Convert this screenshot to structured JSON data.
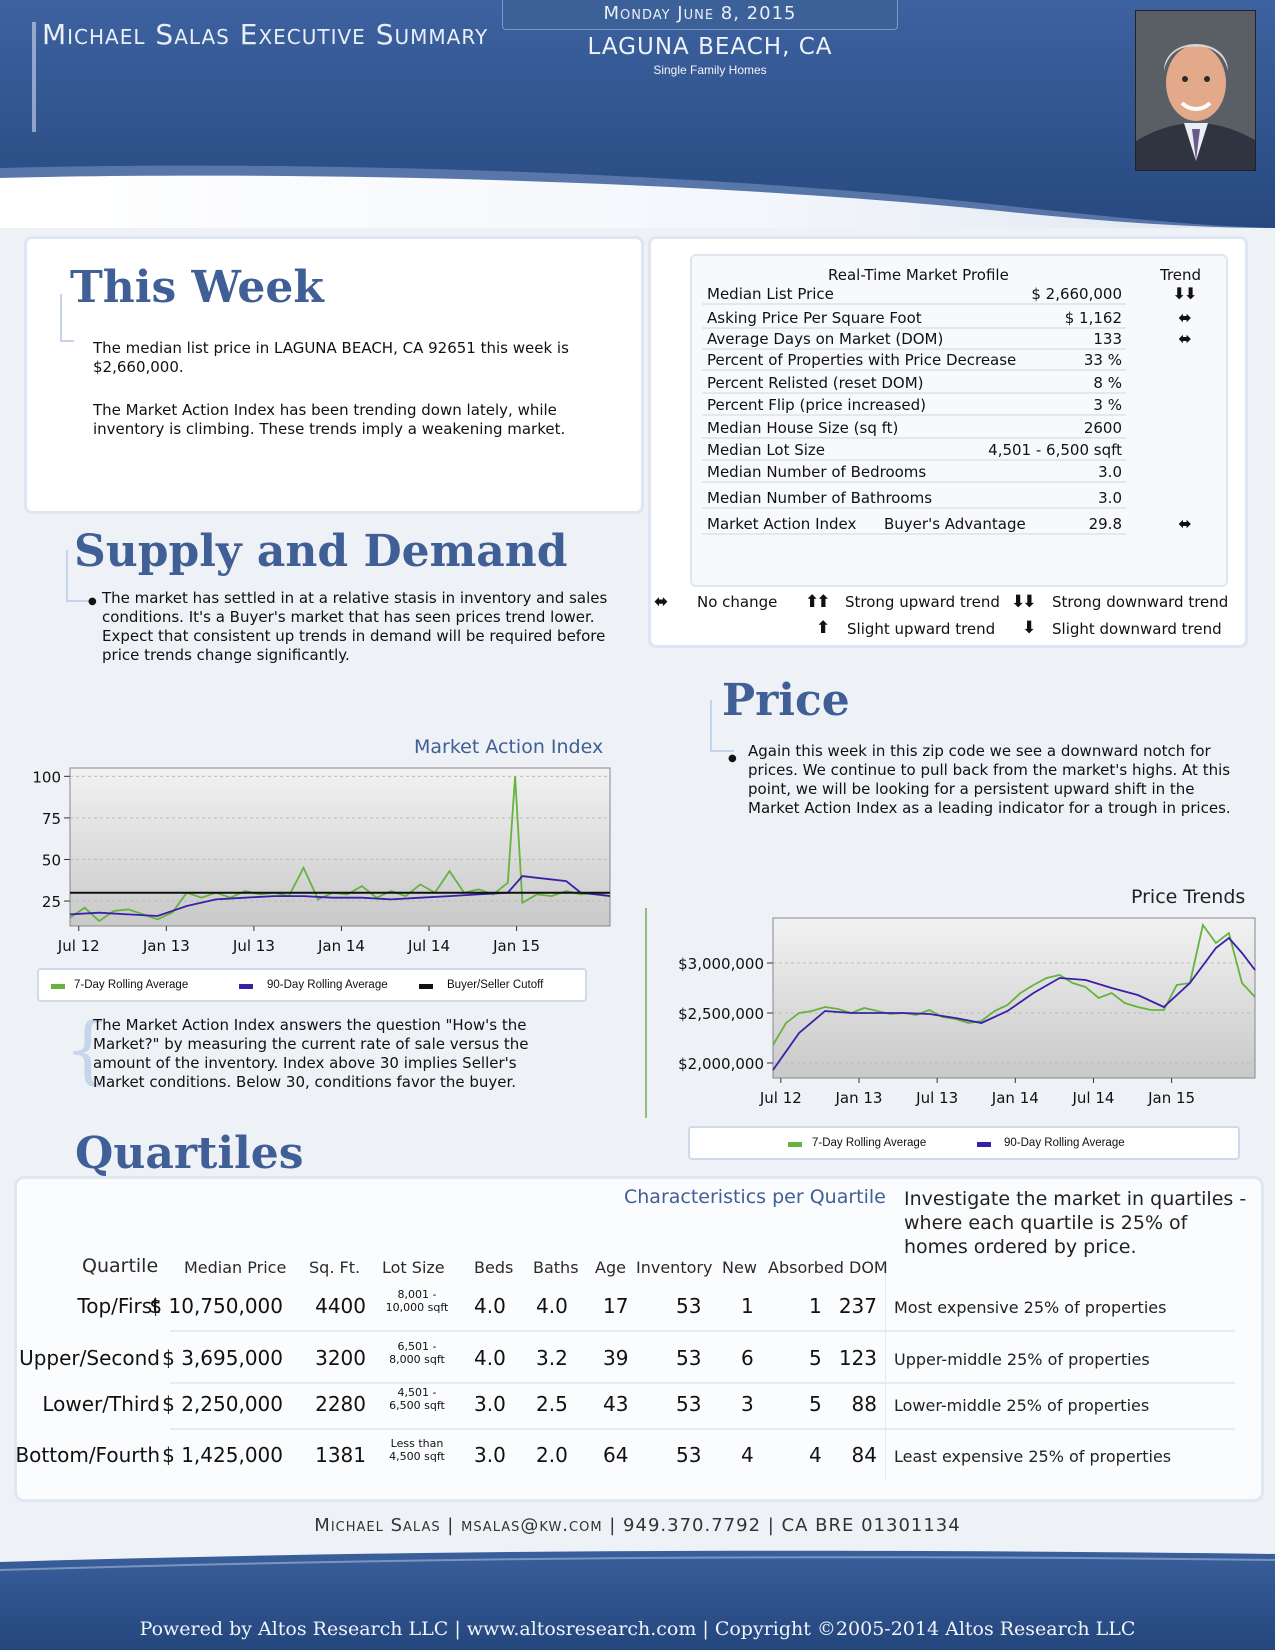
{
  "header": {
    "title": "Michael Salas Executive Summary",
    "date": "Monday June 8, 2015",
    "city": "LAGUNA BEACH, CA",
    "subtitle": "Single Family Homes"
  },
  "this_week": {
    "heading": "This Week",
    "para1": "The median list price in LAGUNA BEACH, CA 92651 this week is $2,660,000.",
    "para2": "The Market Action Index has been trending down lately, while inventory is climbing. These trends imply a weakening market."
  },
  "market_profile": {
    "title": "Real-Time Market Profile",
    "trend_header": "Trend",
    "rows": [
      {
        "label": "Median List Price",
        "mid": "",
        "value": "$ 2,660,000",
        "trend": "⬇⬇"
      },
      {
        "label": "Asking Price Per Square Foot",
        "mid": "",
        "value": "$ 1,162",
        "trend": "⬌"
      },
      {
        "label": "Average Days on Market (DOM)",
        "mid": "",
        "value": "133",
        "trend": "⬌"
      },
      {
        "label": "Percent of Properties with Price Decrease",
        "mid": "",
        "value": "33 %",
        "trend": ""
      },
      {
        "label": "Percent Relisted (reset DOM)",
        "mid": "",
        "value": "8 %",
        "trend": ""
      },
      {
        "label": "Percent Flip (price increased)",
        "mid": "",
        "value": "3 %",
        "trend": ""
      },
      {
        "label": "Median House Size (sq ft)",
        "mid": "",
        "value": "2600",
        "trend": ""
      },
      {
        "label": "Median Lot Size",
        "mid": "",
        "value": "4,501 - 6,500 sqft",
        "trend": ""
      },
      {
        "label": "Median Number of Bedrooms",
        "mid": "",
        "value": "3.0",
        "trend": ""
      },
      {
        "label": "Median Number of Bathrooms",
        "mid": "",
        "value": "3.0",
        "trend": ""
      },
      {
        "label": "Market Action Index",
        "mid": "Buyer's Advantage",
        "value": "29.8",
        "trend": "⬌"
      }
    ]
  },
  "trend_legend": {
    "no_change": "No change",
    "strong_up": "Strong upward trend",
    "strong_down": "Strong downward trend",
    "slight_up": "Slight upward trend",
    "slight_down": "Slight downward trend",
    "no_change_sym": "⬌",
    "strong_up_sym": "⬆⬆",
    "strong_down_sym": "⬇⬇",
    "slight_up_sym": "⬆",
    "slight_down_sym": "⬇"
  },
  "supply": {
    "heading": "Supply and Demand",
    "text": "The market has settled in at a relative stasis in inventory and sales conditions. It's a Buyer's market that has seen prices trend lower. Expect that consistent up trends in demand will be required before price trends change significantly."
  },
  "price": {
    "heading": "Price",
    "text": "Again this week in this zip code we see a downward notch for prices. We continue to pull back from the market's highs. At this point, we will be looking for a persistent upward shift in the Market Action Index as a leading indicator for a trough in prices."
  },
  "mai_note": "The Market Action Index answers the question \"How's the Market?\" by measuring the current rate of sale versus the amount of the inventory.  Index above 30 implies Seller's Market conditions. Below 30, conditions favor the buyer.",
  "chart_data": [
    {
      "type": "line",
      "title": "Market Action Index",
      "x_ticks": [
        "Jul 12",
        "Jan 13",
        "Jul 13",
        "Jan 14",
        "Jul 14",
        "Jan 15"
      ],
      "y_ticks": [
        "100",
        "75",
        "50",
        "25"
      ],
      "ylim": [
        10,
        105
      ],
      "x_range_months": [
        0,
        37
      ],
      "legend": [
        "7-Day Rolling Average",
        "90-Day Rolling Average",
        "Buyer/Seller Cutoff"
      ],
      "series": [
        {
          "name": "7-Day Rolling Average",
          "color": "#66b33f",
          "x": [
            0,
            1,
            2,
            3,
            4,
            5,
            6,
            7,
            8,
            9,
            10,
            11,
            12,
            13,
            14,
            15,
            16,
            17,
            18,
            19,
            20,
            21,
            22,
            23,
            24,
            25,
            26,
            27,
            28,
            29,
            30,
            30.5,
            31,
            32,
            33,
            34,
            35,
            36,
            37
          ],
          "y": [
            15,
            21,
            13,
            19,
            20,
            17,
            14,
            18,
            30,
            27,
            30,
            27,
            31,
            29,
            30,
            28,
            45,
            26,
            30,
            29,
            34,
            27,
            31,
            28,
            35,
            30,
            43,
            30,
            32,
            29,
            36,
            100,
            24,
            29,
            28,
            31,
            29,
            30,
            28
          ]
        },
        {
          "name": "90-Day Rolling Average",
          "color": "#3a1fa8",
          "x": [
            0,
            2,
            4,
            6,
            8,
            10,
            12,
            14,
            16,
            18,
            20,
            22,
            24,
            26,
            28,
            30,
            31,
            32,
            34,
            35,
            36,
            37
          ],
          "y": [
            17,
            18,
            17,
            16,
            22,
            26,
            27,
            28,
            28,
            27,
            27,
            26,
            27,
            28,
            29,
            30,
            40,
            39,
            37,
            30,
            29,
            28
          ]
        },
        {
          "name": "Buyer/Seller Cutoff",
          "color": "#111111",
          "x": [
            0,
            37
          ],
          "y": [
            30,
            30
          ]
        }
      ]
    },
    {
      "type": "line",
      "title": "Price Trends",
      "x_ticks": [
        "Jul 12",
        "Jan 13",
        "Jul 13",
        "Jan 14",
        "Jul 14",
        "Jan 15"
      ],
      "y_ticks": [
        "$3,000,000",
        "$2,500,000",
        "$2,000,000"
      ],
      "ylim": [
        1850000,
        3450000
      ],
      "x_range_months": [
        0,
        37
      ],
      "legend": [
        "7-Day Rolling Average",
        "90-Day Rolling Average"
      ],
      "series": [
        {
          "name": "7-Day Rolling Average",
          "color": "#66b33f",
          "x": [
            0,
            1,
            2,
            3,
            4,
            5,
            6,
            7,
            8,
            9,
            10,
            11,
            12,
            13,
            14,
            15,
            16,
            17,
            18,
            19,
            20,
            21,
            22,
            23,
            24,
            25,
            26,
            27,
            28,
            29,
            30,
            31,
            32,
            33,
            34,
            35,
            36,
            37
          ],
          "y": [
            2180000,
            2400000,
            2500000,
            2520000,
            2560000,
            2540000,
            2500000,
            2550000,
            2520000,
            2490000,
            2500000,
            2480000,
            2530000,
            2460000,
            2440000,
            2400000,
            2420000,
            2520000,
            2580000,
            2700000,
            2780000,
            2850000,
            2880000,
            2800000,
            2760000,
            2650000,
            2700000,
            2600000,
            2560000,
            2530000,
            2530000,
            2780000,
            2800000,
            3380000,
            3200000,
            3300000,
            2800000,
            2660000
          ]
        },
        {
          "name": "90-Day Rolling Average",
          "color": "#3a1fa8",
          "x": [
            0,
            2,
            4,
            6,
            8,
            10,
            12,
            14,
            16,
            18,
            20,
            22,
            24,
            26,
            28,
            30,
            32,
            34,
            35,
            36,
            37
          ],
          "y": [
            1930000,
            2300000,
            2520000,
            2500000,
            2500000,
            2500000,
            2490000,
            2450000,
            2400000,
            2520000,
            2700000,
            2850000,
            2830000,
            2750000,
            2680000,
            2560000,
            2800000,
            3150000,
            3250000,
            3100000,
            2930000
          ]
        }
      ]
    }
  ],
  "quartiles": {
    "heading": "Quartiles",
    "chart_title": "Characteristics per Quartile",
    "side_text": "Investigate the market in quartiles - where each quartile is 25% of homes ordered by price.",
    "headers": [
      "Quartile",
      "Median Price",
      "Sq. Ft.",
      "Lot Size",
      "Beds",
      "Baths",
      "Age",
      "Inventory",
      "New",
      "Absorbed",
      "DOM"
    ],
    "rows": [
      {
        "name": "Top/First",
        "price": "$ 10,750,000",
        "sqft": "4400",
        "lot1": "8,001 -",
        "lot2": "10,000 sqft",
        "beds": "4.0",
        "baths": "4.0",
        "age": "17",
        "inv": "53",
        "new": "1",
        "abs": "1",
        "dom": "237",
        "desc": "Most expensive 25% of properties"
      },
      {
        "name": "Upper/Second",
        "price": "$ 3,695,000",
        "sqft": "3200",
        "lot1": "6,501 -",
        "lot2": "8,000 sqft",
        "beds": "4.0",
        "baths": "3.2",
        "age": "39",
        "inv": "53",
        "new": "6",
        "abs": "5",
        "dom": "123",
        "desc": "Upper-middle 25% of properties"
      },
      {
        "name": "Lower/Third",
        "price": "$ 2,250,000",
        "sqft": "2280",
        "lot1": "4,501 -",
        "lot2": "6,500 sqft",
        "beds": "3.0",
        "baths": "2.5",
        "age": "43",
        "inv": "53",
        "new": "3",
        "abs": "5",
        "dom": "88",
        "desc": "Lower-middle 25% of properties"
      },
      {
        "name": "Bottom/Fourth",
        "price": "$ 1,425,000",
        "sqft": "1381",
        "lot1": "Less than",
        "lot2": "4,500 sqft",
        "beds": "3.0",
        "baths": "2.0",
        "age": "64",
        "inv": "53",
        "new": "4",
        "abs": "4",
        "dom": "84",
        "desc": "Least expensive 25% of properties"
      }
    ]
  },
  "footer": {
    "contact": "Michael Salas | msalas@kw.com | 949.370.7792 | CA BRE 01301134",
    "powered": "Powered by Altos Research LLC | www.altosresearch.com | Copyright ©2005-2014 Altos Research LLC"
  }
}
